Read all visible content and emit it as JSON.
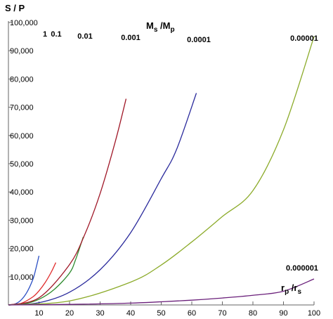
{
  "chart_data": {
    "type": "line",
    "ylabel": "S / P",
    "xlabel": {
      "base1": "r",
      "sub1": "p",
      "mid": " /r",
      "sub2": "s"
    },
    "legend_title": {
      "base1": "M",
      "sub1": "s",
      "mid": " /M",
      "sub2": "p"
    },
    "xlim": [
      0,
      100
    ],
    "ylim": [
      0,
      100000
    ],
    "x_ticks": [
      10,
      20,
      30,
      40,
      50,
      60,
      70,
      80,
      90,
      100
    ],
    "x_tick_labels": [
      "10",
      "20",
      "30",
      "40",
      "50",
      "60",
      "70",
      "80",
      "90",
      "100"
    ],
    "y_ticks": [
      10000,
      20000,
      30000,
      40000,
      50000,
      60000,
      70000,
      80000,
      90000,
      100000
    ],
    "y_tick_labels": [
      "10,000",
      "20,000",
      "30,000",
      "40,000",
      "50,000",
      "60,000",
      "70,000",
      "80,000",
      "90,000",
      "100,000"
    ],
    "series": [
      {
        "name": "1",
        "color": "#2b4fc4",
        "x": [
          0,
          2,
          4,
          6,
          8,
          9,
          10
        ],
        "y": [
          0,
          283,
          1600,
          4409,
          9051,
          12924,
          17400
        ]
      },
      {
        "name": "0.1",
        "color": "#e02b2b",
        "x": [
          0,
          4,
          8,
          10,
          12,
          14,
          15.5
        ],
        "y": [
          0,
          506,
          2862,
          5000,
          7889,
          11597,
          15000
        ]
      },
      {
        "name": "0.01",
        "color": "#2e8b2e",
        "x": [
          0,
          5,
          10,
          15,
          20,
          22,
          24.5
        ],
        "y": [
          0,
          354,
          2000,
          5511,
          11314,
          16100,
          24100
        ]
      },
      {
        "name": "0.001",
        "color": "#a01828",
        "x": [
          0,
          10,
          20,
          25,
          30,
          35,
          38.5
        ],
        "y": [
          0,
          2530,
          14311,
          25000,
          39441,
          57982,
          73000
        ]
      },
      {
        "name": "0.0001",
        "color": "#2a2a9c",
        "x": [
          0,
          10,
          20,
          30,
          40,
          50,
          55,
          61.5
        ],
        "y": [
          0,
          800,
          4525,
          12472,
          25600,
          44721,
          55000,
          75000
        ]
      },
      {
        "name": "0.00001",
        "color": "#8cab2a",
        "x": [
          0,
          20,
          40,
          50,
          60,
          70,
          80,
          90,
          100
        ],
        "y": [
          0,
          1431,
          8095,
          14142,
          22309,
          31298,
          40477,
          62000,
          95000
        ]
      },
      {
        "name": "0.000001",
        "color": "#6a1f7a",
        "x": [
          0,
          20,
          40,
          60,
          70,
          80,
          90,
          100
        ],
        "y": [
          0,
          200,
          650,
          1690,
          2460,
          3430,
          4860,
          9200
        ]
      }
    ],
    "curve_label_texts": [
      "1",
      "0.1",
      "0.01",
      "0.001",
      "0.0001",
      "0.00001",
      "0.000001"
    ]
  }
}
